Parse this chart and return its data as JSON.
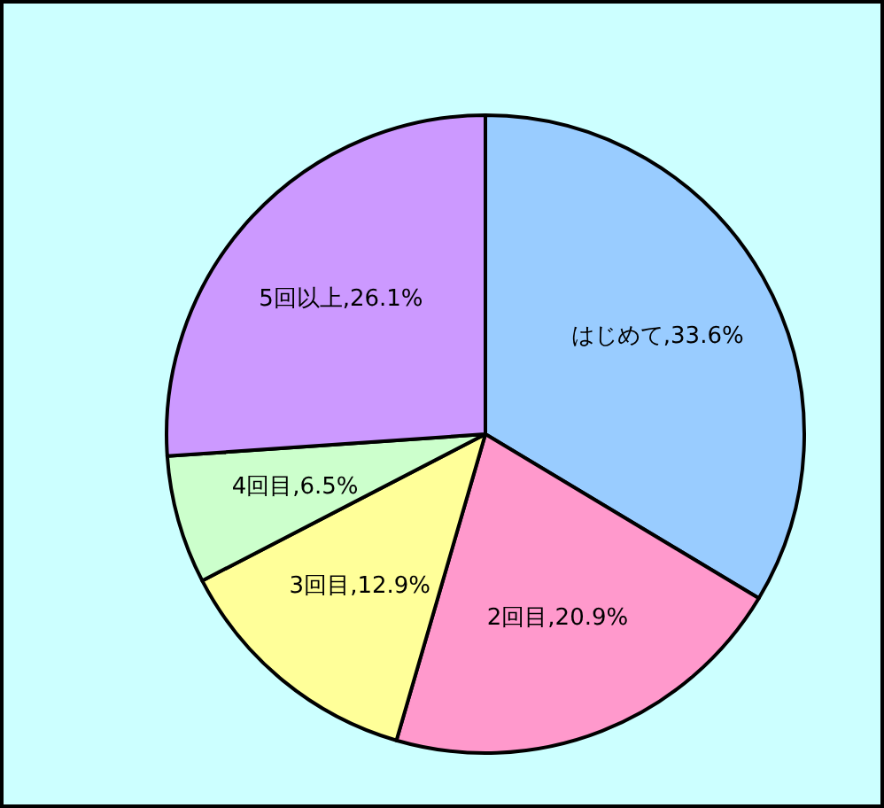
{
  "chart_data": {
    "type": "pie",
    "categories": [
      "はじめて",
      "2回目",
      "3回目",
      "4回目",
      "5回以上"
    ],
    "values": [
      33.6,
      20.9,
      12.9,
      6.5,
      26.1
    ],
    "colors": [
      "#99ccff",
      "#ff99cc",
      "#ffff99",
      "#ccffcc",
      "#cc99ff"
    ],
    "value_labels": [
      "33.6%",
      "20.9%",
      "12.9%",
      "6.5%",
      "26.1%"
    ]
  }
}
